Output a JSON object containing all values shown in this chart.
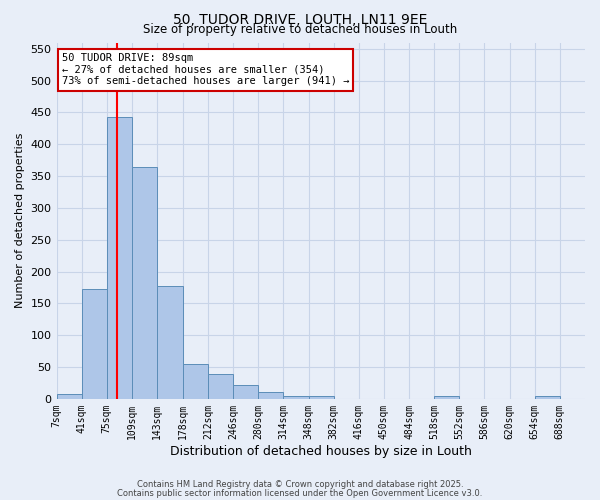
{
  "title_line1": "50, TUDOR DRIVE, LOUTH, LN11 9EE",
  "title_line2": "Size of property relative to detached houses in Louth",
  "xlabel": "Distribution of detached houses by size in Louth",
  "ylabel": "Number of detached properties",
  "bar_edges": [
    7,
    41,
    75,
    109,
    143,
    178,
    212,
    246,
    280,
    314,
    348,
    382,
    416,
    450,
    484,
    518,
    552,
    586,
    620,
    654,
    688,
    722
  ],
  "bar_heights": [
    8,
    172,
    443,
    365,
    178,
    55,
    39,
    21,
    10,
    5,
    4,
    0,
    0,
    0,
    0,
    5,
    0,
    0,
    0,
    5,
    0
  ],
  "bar_color": "#aec6e8",
  "bar_edge_color": "#5b8db8",
  "red_line_x": 89,
  "annotation_line1": "50 TUDOR DRIVE: 89sqm",
  "annotation_line2": "← 27% of detached houses are smaller (354)",
  "annotation_line3": "73% of semi-detached houses are larger (941) →",
  "annotation_box_color": "#ffffff",
  "annotation_box_edge": "#cc0000",
  "ylim": [
    0,
    560
  ],
  "yticks": [
    0,
    50,
    100,
    150,
    200,
    250,
    300,
    350,
    400,
    450,
    500,
    550
  ],
  "tick_labels": [
    "7sqm",
    "41sqm",
    "75sqm",
    "109sqm",
    "143sqm",
    "178sqm",
    "212sqm",
    "246sqm",
    "280sqm",
    "314sqm",
    "348sqm",
    "382sqm",
    "416sqm",
    "450sqm",
    "484sqm",
    "518sqm",
    "552sqm",
    "586sqm",
    "620sqm",
    "654sqm",
    "688sqm"
  ],
  "grid_color": "#c8d4e8",
  "bg_color": "#e8eef8",
  "footer_line1": "Contains HM Land Registry data © Crown copyright and database right 2025.",
  "footer_line2": "Contains public sector information licensed under the Open Government Licence v3.0."
}
